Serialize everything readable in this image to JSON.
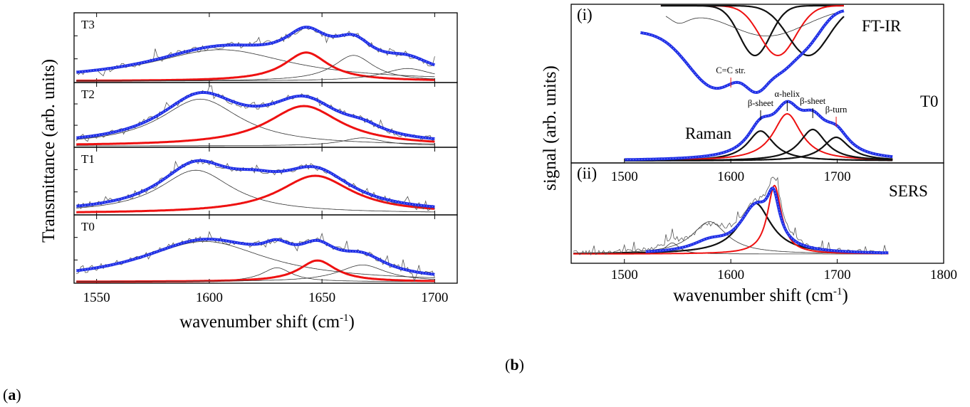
{
  "figure": {
    "caption_a": "(a)",
    "caption_b": "(b)"
  },
  "chart_data": [
    {
      "id": "a",
      "type": "line",
      "xlabel": "wavenumber shift (cm-1)",
      "ylabel": "Transmittance (arb. units)",
      "xlim": [
        1540,
        1710
      ],
      "xticks": [
        1550,
        1600,
        1650,
        1700
      ],
      "grid": false,
      "component_colors": {
        "sum": "#1f2fe6",
        "highlighted_component": "#e11111",
        "other_components": "#333333"
      },
      "panels": [
        {
          "name": "T3",
          "sum_peaks": [
            {
              "center": 1605,
              "width": 38,
              "height": 0.55
            },
            {
              "center": 1643,
              "width": 12,
              "height": 0.55
            },
            {
              "center": 1664,
              "width": 11,
              "height": 0.45
            },
            {
              "center": 1688,
              "width": 14,
              "height": 0.25
            }
          ],
          "components": [
            {
              "color": "black",
              "center": 1605,
              "width": 38,
              "height": 0.55
            },
            {
              "color": "red",
              "center": 1643,
              "width": 12,
              "height": 0.5
            },
            {
              "color": "black",
              "center": 1664,
              "width": 11,
              "height": 0.45
            },
            {
              "color": "black",
              "center": 1688,
              "width": 14,
              "height": 0.22
            }
          ]
        },
        {
          "name": "T2",
          "sum_peaks": [
            {
              "center": 1596,
              "width": 22,
              "height": 0.88
            },
            {
              "center": 1642,
              "width": 20,
              "height": 0.75
            },
            {
              "center": 1668,
              "width": 11,
              "height": 0.15
            }
          ],
          "components": [
            {
              "color": "black",
              "center": 1596,
              "width": 22,
              "height": 0.88
            },
            {
              "color": "red",
              "center": 1642,
              "width": 20,
              "height": 0.75
            },
            {
              "color": "black",
              "center": 1668,
              "width": 11,
              "height": 0.15
            }
          ]
        },
        {
          "name": "T1",
          "sum_peaks": [
            {
              "center": 1594,
              "width": 20,
              "height": 0.8
            },
            {
              "center": 1647,
              "width": 20,
              "height": 0.68
            },
            {
              "center": 1620,
              "width": 15,
              "height": 0.25
            }
          ],
          "components": [
            {
              "color": "black",
              "center": 1594,
              "width": 20,
              "height": 0.78
            },
            {
              "color": "red",
              "center": 1647,
              "width": 20,
              "height": 0.68
            }
          ]
        },
        {
          "name": "T0",
          "sum_peaks": [
            {
              "center": 1598,
              "width": 34,
              "height": 0.72
            },
            {
              "center": 1630,
              "width": 8,
              "height": 0.25
            },
            {
              "center": 1648,
              "width": 10,
              "height": 0.38
            },
            {
              "center": 1668,
              "width": 13,
              "height": 0.3
            }
          ],
          "components": [
            {
              "color": "black",
              "center": 1598,
              "width": 34,
              "height": 0.72
            },
            {
              "color": "black",
              "center": 1630,
              "width": 8,
              "height": 0.25
            },
            {
              "color": "red",
              "center": 1648,
              "width": 10,
              "height": 0.38
            },
            {
              "color": "black",
              "center": 1668,
              "width": 13,
              "height": 0.3
            }
          ]
        }
      ]
    },
    {
      "id": "b",
      "type": "line",
      "xlabel": "wavenumber shift (cm-1)",
      "ylabel": "signal (arb. units)",
      "xlim": [
        1450,
        1800
      ],
      "xticks": [
        1500,
        1600,
        1700,
        1800
      ],
      "grid": false,
      "panels": [
        {
          "name": "(i)",
          "sample": "T0",
          "ftir_label": "FT-IR",
          "raman_label": "Raman",
          "inner_xticks": [
            1500,
            1600,
            1700
          ],
          "ftir_components": [
            {
              "color": "black",
              "center": 1630,
              "width": 12
            },
            {
              "color": "red",
              "center": 1648,
              "width": 14
            },
            {
              "color": "black",
              "center": 1672,
              "width": 16
            }
          ],
          "raman_components": [
            {
              "color": "black",
              "center": 1628,
              "width": 15,
              "height": 0.38
            },
            {
              "color": "red",
              "center": 1653,
              "width": 16,
              "height": 0.6
            },
            {
              "color": "black",
              "center": 1677,
              "width": 15,
              "height": 0.4
            },
            {
              "color": "black",
              "center": 1699,
              "width": 15,
              "height": 0.3
            }
          ],
          "annotations": [
            {
              "label": "C=C str.",
              "x": 1600
            },
            {
              "label": "β-sheet",
              "x": 1628
            },
            {
              "label": "α-helix",
              "x": 1653
            },
            {
              "label": "β-sheet",
              "x": 1677
            },
            {
              "label": "β-turn",
              "x": 1699
            }
          ]
        },
        {
          "name": "(ii)",
          "label": "SERS",
          "components": [
            {
              "color": "black",
              "center": 1623,
              "width": 18,
              "height": 0.55
            },
            {
              "color": "red",
              "center": 1641,
              "width": 8,
              "height": 0.74
            }
          ],
          "sum_peak": {
            "center": 1640,
            "width": 7,
            "height": 0.45
          },
          "extra_thin": [
            {
              "center": 1580,
              "width": 20,
              "height": 0.35
            },
            {
              "center": 1545,
              "width": 8,
              "height": 0.12
            }
          ]
        }
      ]
    }
  ]
}
